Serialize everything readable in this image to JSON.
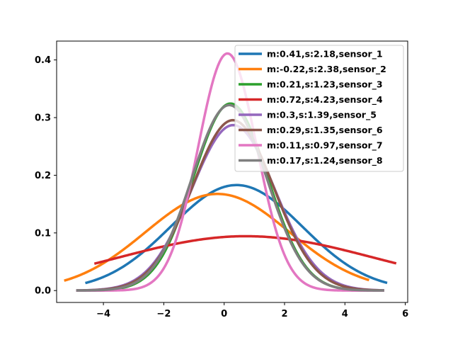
{
  "chart_data": {
    "type": "line",
    "title": "",
    "xlabel": "",
    "ylabel": "",
    "xlim": [
      -5.55,
      6.08
    ],
    "ylim": [
      -0.0206,
      0.4327
    ],
    "xticks": [
      -4,
      -2,
      0,
      2,
      4,
      6
    ],
    "xtick_labels": [
      "−4",
      "−2",
      "0",
      "2",
      "4",
      "6"
    ],
    "yticks": [
      0.0,
      0.1,
      0.2,
      0.3,
      0.4
    ],
    "ytick_labels": [
      "0.0",
      "0.1",
      "0.2",
      "0.3",
      "0.4"
    ],
    "grid": false,
    "legend_position": "upper right",
    "series": [
      {
        "name": "m:0.41,s:2.18,sensor_1",
        "mean": 0.41,
        "std": 2.18,
        "x_range": [
          -4.6,
          5.4
        ],
        "color": "#1f77b4"
      },
      {
        "name": "m:-0.22,s:2.38,sensor_2",
        "mean": -0.22,
        "std": 2.38,
        "x_range": [
          -5.3,
          4.8
        ],
        "color": "#ff7f0e"
      },
      {
        "name": "m:0.21,s:1.23,sensor_3",
        "mean": 0.21,
        "std": 1.23,
        "x_range": [
          -4.9,
          5.3
        ],
        "color": "#2ca02c"
      },
      {
        "name": "m:0.72,s:4.23,sensor_4",
        "mean": 0.72,
        "std": 4.23,
        "x_range": [
          -4.3,
          5.7
        ],
        "color": "#d62728"
      },
      {
        "name": "m:0.3,s:1.39,sensor_5",
        "mean": 0.3,
        "std": 1.39,
        "x_range": [
          -4.9,
          5.3
        ],
        "color": "#9467bd"
      },
      {
        "name": "m:0.29,s:1.35,sensor_6",
        "mean": 0.29,
        "std": 1.35,
        "x_range": [
          -4.9,
          5.3
        ],
        "color": "#8c564b"
      },
      {
        "name": "m:0.11,s:0.97,sensor_7",
        "mean": 0.11,
        "std": 0.97,
        "x_range": [
          -4.9,
          5.3
        ],
        "color": "#e377c2"
      },
      {
        "name": "m:0.17,s:1.24,sensor_8",
        "mean": 0.17,
        "std": 1.24,
        "x_range": [
          -4.9,
          5.3
        ],
        "color": "#7f7f7f"
      }
    ]
  }
}
